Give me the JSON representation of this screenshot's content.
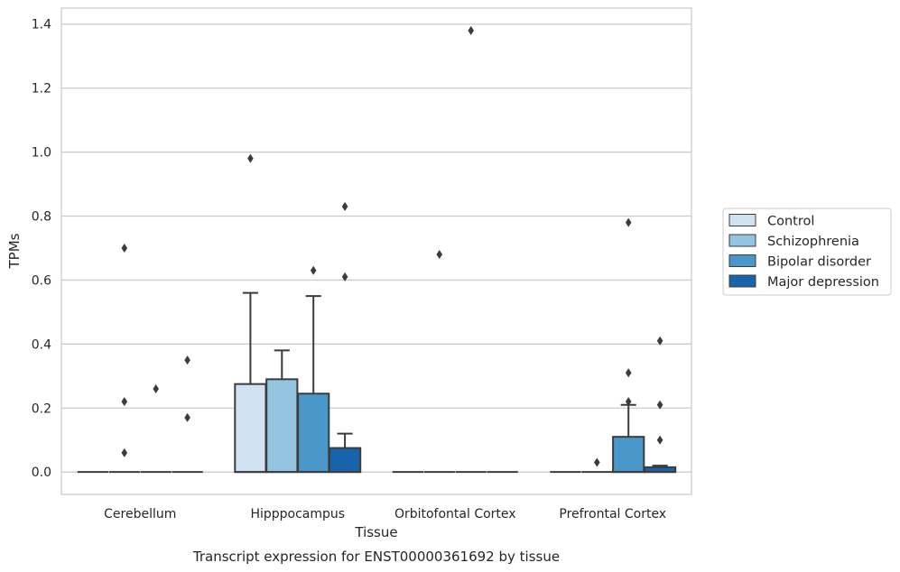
{
  "caption": "Transcript expression for ENST00000361692 by tissue",
  "chart_data": {
    "type": "box",
    "xlabel": "Tissue",
    "ylabel": "TPMs",
    "categories": [
      "Cerebellum",
      "Hipppocampus",
      "Orbitofontal Cortex",
      "Prefrontal Cortex"
    ],
    "ylim": [
      -0.07,
      1.45
    ],
    "yticks": [
      0.0,
      0.2,
      0.4,
      0.6,
      0.8,
      1.0,
      1.2,
      1.4
    ],
    "ytick_labels": [
      "0.0",
      "0.2",
      "0.4",
      "0.6",
      "0.8",
      "1.0",
      "1.2",
      "1.4"
    ],
    "grid": "horizontal",
    "legend_position": "right",
    "series": [
      {
        "name": "Control",
        "color": "#d0e1f2",
        "boxes": [
          {
            "q1": 0,
            "median": 0,
            "q3": 0,
            "whislo": 0,
            "whishi": 0,
            "fliers": []
          },
          {
            "q1": 0,
            "median": 0,
            "q3": 0.275,
            "whislo": 0,
            "whishi": 0.56,
            "fliers": [
              0.98
            ]
          },
          {
            "q1": 0,
            "median": 0,
            "q3": 0,
            "whislo": 0,
            "whishi": 0,
            "fliers": []
          },
          {
            "q1": 0,
            "median": 0,
            "q3": 0,
            "whislo": 0,
            "whishi": 0,
            "fliers": []
          }
        ]
      },
      {
        "name": "Schizophrenia",
        "color": "#94c4df",
        "boxes": [
          {
            "q1": 0,
            "median": 0,
            "q3": 0,
            "whislo": 0,
            "whishi": 0,
            "fliers": [
              0.7,
              0.22,
              0.06
            ]
          },
          {
            "q1": 0,
            "median": 0,
            "q3": 0.29,
            "whislo": 0,
            "whishi": 0.38,
            "fliers": []
          },
          {
            "q1": 0,
            "median": 0,
            "q3": 0,
            "whislo": 0,
            "whishi": 0,
            "fliers": [
              0.68
            ]
          },
          {
            "q1": 0,
            "median": 0,
            "q3": 0,
            "whislo": 0,
            "whishi": 0,
            "fliers": [
              0.03
            ]
          }
        ]
      },
      {
        "name": "Bipolar disorder",
        "color": "#4a98c9",
        "boxes": [
          {
            "q1": 0,
            "median": 0,
            "q3": 0,
            "whislo": 0,
            "whishi": 0,
            "fliers": [
              0.26
            ]
          },
          {
            "q1": 0,
            "median": 0,
            "q3": 0.245,
            "whislo": 0,
            "whishi": 0.55,
            "fliers": [
              0.63
            ]
          },
          {
            "q1": 0,
            "median": 0,
            "q3": 0,
            "whislo": 0,
            "whishi": 0,
            "fliers": [
              1.38
            ]
          },
          {
            "q1": 0,
            "median": 0,
            "q3": 0.11,
            "whislo": 0,
            "whishi": 0.21,
            "fliers": [
              0.78,
              0.31,
              0.22
            ]
          }
        ]
      },
      {
        "name": "Major depression",
        "color": "#1764ab",
        "boxes": [
          {
            "q1": 0,
            "median": 0,
            "q3": 0,
            "whislo": 0,
            "whishi": 0,
            "fliers": [
              0.35,
              0.17
            ]
          },
          {
            "q1": 0,
            "median": 0,
            "q3": 0.075,
            "whislo": 0,
            "whishi": 0.12,
            "fliers": [
              0.83,
              0.61
            ]
          },
          {
            "q1": 0,
            "median": 0,
            "q3": 0,
            "whislo": 0,
            "whishi": 0,
            "fliers": []
          },
          {
            "q1": 0,
            "median": 0,
            "q3": 0.015,
            "whislo": 0,
            "whishi": 0.02,
            "fliers": [
              0.41,
              0.21,
              0.1
            ]
          }
        ]
      }
    ]
  }
}
